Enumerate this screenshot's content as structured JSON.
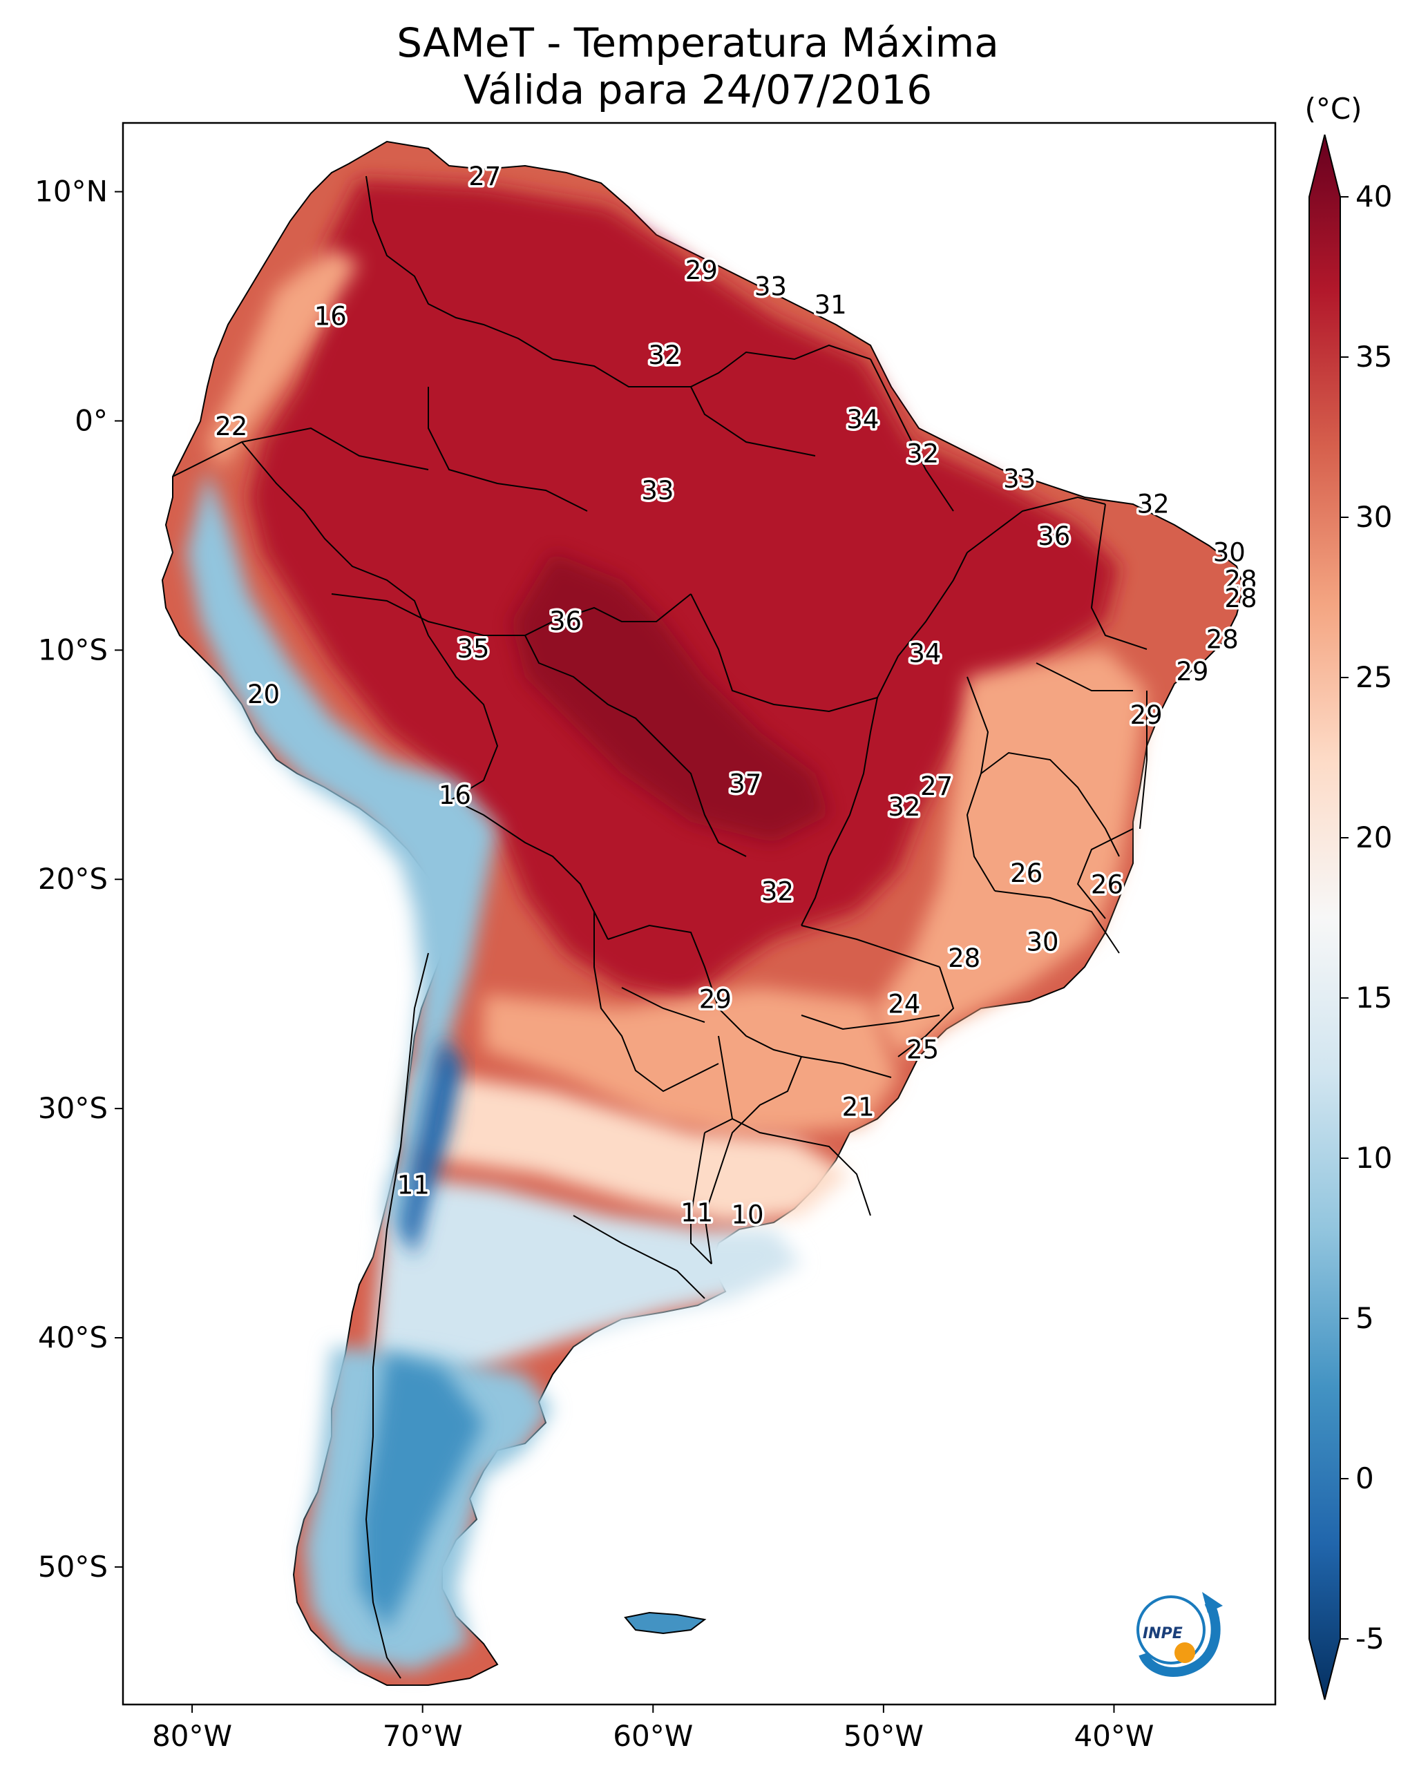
{
  "title": {
    "line1": "SAMeT - Temperatura Máxima",
    "line2": "Válida para 24/07/2016"
  },
  "map": {
    "lon_range": [
      -83,
      -33
    ],
    "lat_range": [
      -56,
      13
    ]
  },
  "axes": {
    "lon_ticks": [
      {
        "value": -80,
        "label": "80°W"
      },
      {
        "value": -70,
        "label": "70°W"
      },
      {
        "value": -60,
        "label": "60°W"
      },
      {
        "value": -50,
        "label": "50°W"
      },
      {
        "value": -40,
        "label": "40°W"
      }
    ],
    "lat_ticks": [
      {
        "value": 10,
        "label": "10°N"
      },
      {
        "value": 0,
        "label": "0°"
      },
      {
        "value": -10,
        "label": "10°S"
      },
      {
        "value": -20,
        "label": "20°S"
      },
      {
        "value": -30,
        "label": "30°S"
      },
      {
        "value": -40,
        "label": "40°S"
      },
      {
        "value": -50,
        "label": "50°S"
      }
    ]
  },
  "colorbar": {
    "unit": "(°C)",
    "min": -5,
    "max": 40,
    "ticks": [
      "-5",
      "0",
      "5",
      "10",
      "15",
      "20",
      "25",
      "30",
      "35",
      "40"
    ],
    "colors": [
      "#053061",
      "#2166ac",
      "#4393c3",
      "#92c5de",
      "#d1e5f0",
      "#f7f7f7",
      "#fddbc7",
      "#f4a582",
      "#d6604d",
      "#b2182b",
      "#67001f"
    ]
  },
  "station_labels": [
    {
      "text": "27",
      "lon": -67.3,
      "lat": 10.6
    },
    {
      "text": "29",
      "lon": -57.9,
      "lat": 6.5
    },
    {
      "text": "33",
      "lon": -54.9,
      "lat": 5.8
    },
    {
      "text": "31",
      "lon": -52.3,
      "lat": 5.0
    },
    {
      "text": "16",
      "lon": -74.0,
      "lat": 4.5
    },
    {
      "text": "32",
      "lon": -59.5,
      "lat": 2.8
    },
    {
      "text": "22",
      "lon": -78.3,
      "lat": -0.3
    },
    {
      "text": "34",
      "lon": -50.9,
      "lat": 0.0
    },
    {
      "text": "32",
      "lon": -48.3,
      "lat": -1.5
    },
    {
      "text": "33",
      "lon": -59.8,
      "lat": -3.1
    },
    {
      "text": "33",
      "lon": -44.1,
      "lat": -2.6
    },
    {
      "text": "32",
      "lon": -38.3,
      "lat": -3.7
    },
    {
      "text": "36",
      "lon": -42.6,
      "lat": -5.1
    },
    {
      "text": "30",
      "lon": -35.0,
      "lat": -5.8
    },
    {
      "text": "28",
      "lon": -34.5,
      "lat": -7.0
    },
    {
      "text": "28",
      "lon": -34.5,
      "lat": -7.8
    },
    {
      "text": "36",
      "lon": -63.8,
      "lat": -8.8
    },
    {
      "text": "35",
      "lon": -67.8,
      "lat": -10.0
    },
    {
      "text": "34",
      "lon": -48.2,
      "lat": -10.2
    },
    {
      "text": "28",
      "lon": -35.3,
      "lat": -9.6
    },
    {
      "text": "29",
      "lon": -36.6,
      "lat": -11.0
    },
    {
      "text": "20",
      "lon": -76.9,
      "lat": -12.0
    },
    {
      "text": "29",
      "lon": -38.6,
      "lat": -12.9
    },
    {
      "text": "37",
      "lon": -56.0,
      "lat": -15.9
    },
    {
      "text": "27",
      "lon": -47.7,
      "lat": -16.0
    },
    {
      "text": "32",
      "lon": -49.1,
      "lat": -16.9
    },
    {
      "text": "16",
      "lon": -68.6,
      "lat": -16.4
    },
    {
      "text": "26",
      "lon": -43.8,
      "lat": -19.8
    },
    {
      "text": "26",
      "lon": -40.3,
      "lat": -20.3
    },
    {
      "text": "32",
      "lon": -54.6,
      "lat": -20.6
    },
    {
      "text": "30",
      "lon": -43.1,
      "lat": -22.8
    },
    {
      "text": "28",
      "lon": -46.5,
      "lat": -23.5
    },
    {
      "text": "29",
      "lon": -57.3,
      "lat": -25.3
    },
    {
      "text": "24",
      "lon": -49.1,
      "lat": -25.5
    },
    {
      "text": "25",
      "lon": -48.3,
      "lat": -27.5
    },
    {
      "text": "21",
      "lon": -51.1,
      "lat": -30.0
    },
    {
      "text": "11",
      "lon": -70.4,
      "lat": -33.4
    },
    {
      "text": "11",
      "lon": -58.1,
      "lat": -34.6
    },
    {
      "text": "10",
      "lon": -55.9,
      "lat": -34.7
    }
  ],
  "logo": {
    "text": "INPE"
  }
}
